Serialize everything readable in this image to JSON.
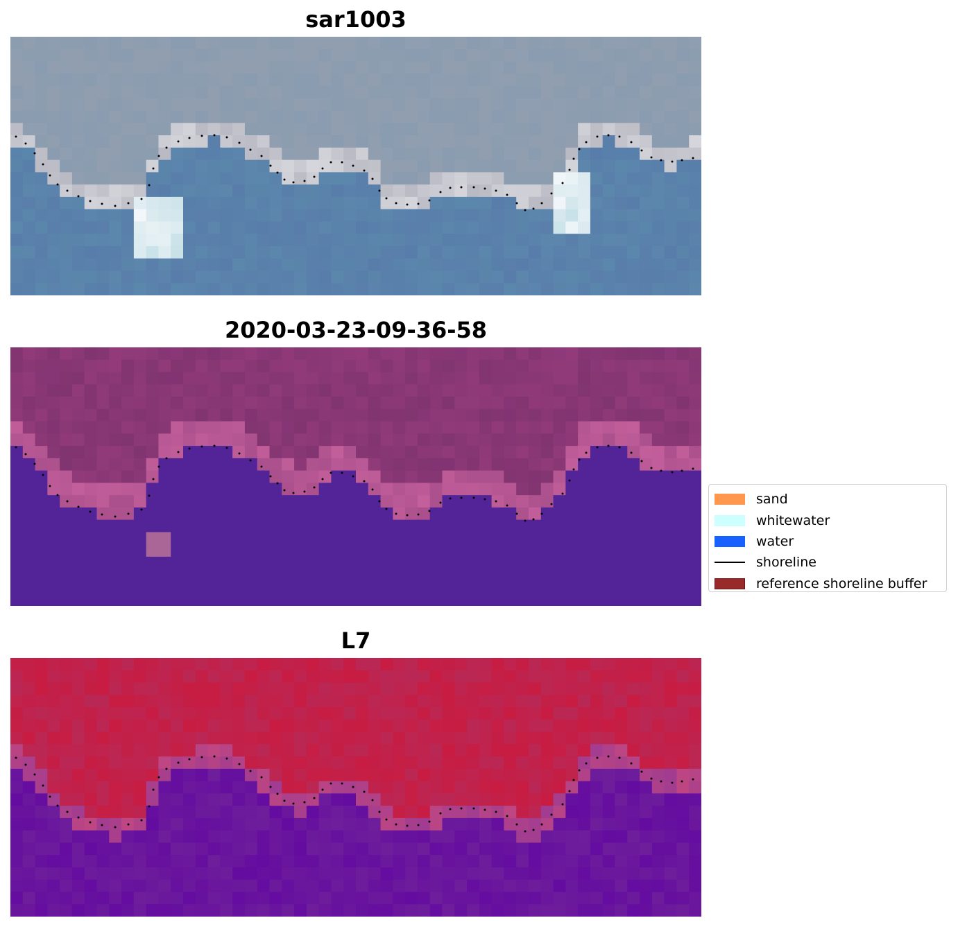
{
  "panels": [
    {
      "title": "sar1003",
      "scene": "rgb"
    },
    {
      "title": "2020-03-23-09-36-58",
      "scene": "classified"
    },
    {
      "title": "L7",
      "scene": "ndwi"
    }
  ],
  "legend": {
    "items": [
      {
        "label": "sand",
        "color": "#ff8c3c",
        "kind": "patch"
      },
      {
        "label": "whitewater",
        "color": "#c8ffff",
        "kind": "patch"
      },
      {
        "label": "water",
        "color": "#0050ff",
        "kind": "patch"
      },
      {
        "label": "shoreline",
        "color": "#000000",
        "kind": "line"
      },
      {
        "label": "reference shoreline buffer",
        "color": "#992a2a",
        "kind": "patch"
      }
    ]
  }
}
